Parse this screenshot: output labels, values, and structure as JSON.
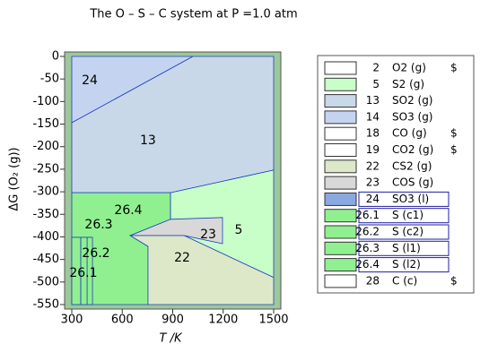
{
  "chart_data": {
    "type": "predominance",
    "title": "The O – S – C system at P =1.0 atm",
    "xlabel": "T /K",
    "ylabel": "ΔG (O₂ (g))",
    "xlim": [
      300,
      1500
    ],
    "ylim": [
      -550,
      0
    ],
    "xticks": [
      300,
      600,
      900,
      1200,
      1500
    ],
    "yticks": [
      0,
      -50,
      -100,
      -150,
      -200,
      -250,
      -300,
      -350,
      -400,
      -450,
      -500,
      -550
    ],
    "regions": [
      {
        "name": "24",
        "color": "#c4d4f0",
        "points": [
          [
            300,
            0
          ],
          [
            1020,
            0
          ],
          [
            300,
            -147
          ]
        ],
        "label_at": [
          407,
          -54
        ]
      },
      {
        "name": "13",
        "color": "#c8d8e8",
        "points": [
          [
            300,
            -147
          ],
          [
            1020,
            0
          ],
          [
            1500,
            0
          ],
          [
            1500,
            -252
          ],
          [
            887,
            -302
          ],
          [
            300,
            -302
          ]
        ],
        "label_at": [
          753,
          -187
        ]
      },
      {
        "name": "26.4",
        "color": "#90f090",
        "points": [
          [
            300,
            -302
          ],
          [
            887,
            -302
          ],
          [
            887,
            -361
          ],
          [
            647,
            -397
          ],
          [
            753,
            -421
          ],
          [
            753,
            -550
          ],
          [
            300,
            -550
          ]
        ],
        "label_at": [
          636,
          -342
        ]
      },
      {
        "name": "26.3",
        "color": "#90f090",
        "points": [
          [
            391,
            -401
          ],
          [
            423,
            -401
          ],
          [
            423,
            -550
          ],
          [
            391,
            -550
          ]
        ],
        "label_at": [
          460,
          -373
        ]
      },
      {
        "name": "26.2",
        "color": "#90f090",
        "points": [
          [
            353,
            -401
          ],
          [
            391,
            -401
          ],
          [
            391,
            -550
          ],
          [
            353,
            -550
          ]
        ],
        "label_at": [
          444,
          -437
        ]
      },
      {
        "name": "26.1",
        "color": "#90f090",
        "points": [
          [
            300,
            -401
          ],
          [
            353,
            -401
          ],
          [
            353,
            -550
          ],
          [
            300,
            -550
          ]
        ],
        "label_at": [
          369,
          -481
        ]
      },
      {
        "name": "5",
        "color": "#c8ffc8",
        "points": [
          [
            887,
            -302
          ],
          [
            1500,
            -252
          ],
          [
            1500,
            -490
          ],
          [
            967,
            -397
          ],
          [
            887,
            -361
          ]
        ],
        "label_at": [
          1292,
          -385
        ]
      },
      {
        "name": "23",
        "color": "#d8d8d8",
        "points": [
          [
            647,
            -397
          ],
          [
            887,
            -361
          ],
          [
            1196,
            -357
          ],
          [
            1196,
            -415
          ],
          [
            967,
            -397
          ]
        ],
        "label_at": [
          1111,
          -395
        ]
      },
      {
        "name": "22",
        "color": "#dce8c8",
        "points": [
          [
            647,
            -397
          ],
          [
            967,
            -397
          ],
          [
            1500,
            -490
          ],
          [
            1500,
            -550
          ],
          [
            753,
            -550
          ],
          [
            753,
            -421
          ]
        ],
        "label_at": [
          956,
          -447
        ]
      }
    ],
    "legend": [
      {
        "code": "2",
        "name": "O2 (g)",
        "flag": "$",
        "color": "#ffffff"
      },
      {
        "code": "5",
        "name": "S2 (g)",
        "color": "#c8ffc8"
      },
      {
        "code": "13",
        "name": "SO2 (g)",
        "color": "#c8d8e8"
      },
      {
        "code": "14",
        "name": "SO3 (g)",
        "color": "#c4d4f0"
      },
      {
        "code": "18",
        "name": "CO (g)",
        "flag": "$",
        "color": "#ffffff"
      },
      {
        "code": "19",
        "name": "CO2 (g)",
        "flag": "$",
        "color": "#ffffff"
      },
      {
        "code": "22",
        "name": "CS2 (g)",
        "color": "#dce8c8"
      },
      {
        "code": "23",
        "name": "COS (g)",
        "color": "#d8d8d8"
      },
      {
        "code": "24",
        "name": "SO3 (l)",
        "color": "#8ca8e0",
        "boxed": true
      },
      {
        "code": "26.1",
        "name": "S (c1)",
        "color": "#90f090",
        "boxed": true
      },
      {
        "code": "26.2",
        "name": "S (c2)",
        "color": "#90f090",
        "boxed": true
      },
      {
        "code": "26.3",
        "name": "S (l1)",
        "color": "#90f090",
        "boxed": true
      },
      {
        "code": "26.4",
        "name": "S (l2)",
        "color": "#90f090",
        "boxed": true
      },
      {
        "code": "28",
        "name": "C (c)",
        "flag": "$",
        "color": "#ffffff"
      }
    ]
  }
}
